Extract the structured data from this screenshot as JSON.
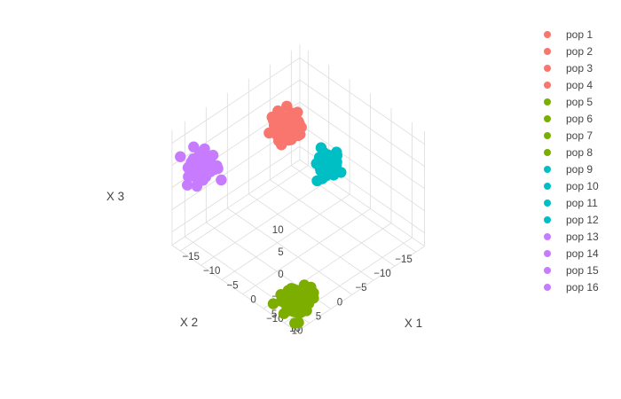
{
  "chart_data": {
    "type": "scatter",
    "projection": "3d",
    "grid": true,
    "legend_position": "right",
    "axes": {
      "x": {
        "label": "X 1",
        "range": [
          -17,
          13
        ],
        "ticks": [
          -15,
          -10,
          -5,
          0,
          5,
          10
        ],
        "tick_labels": [
          "−15",
          "−10",
          "−5",
          "0",
          "5",
          "10"
        ]
      },
      "y": {
        "label": "X 2",
        "range": [
          -17,
          13
        ],
        "ticks": [
          -15,
          -10,
          -5,
          0,
          5,
          10
        ],
        "tick_labels": [
          "−15",
          "−10",
          "−5",
          "0",
          "5",
          "10"
        ]
      },
      "z": {
        "label": "X 3",
        "range": [
          -13,
          13
        ],
        "ticks": [
          -10,
          -5,
          0,
          5,
          10
        ],
        "tick_labels": [
          "−10",
          "−5",
          "0",
          "5",
          "10"
        ]
      }
    },
    "series": [
      {
        "name": "pop 1",
        "color": "#F8766D",
        "center": [
          -11,
          -8,
          4
        ],
        "spread": 1.3
      },
      {
        "name": "pop 2",
        "color": "#F8766D",
        "center": [
          -11,
          -8,
          4
        ],
        "spread": 1.3
      },
      {
        "name": "pop 3",
        "color": "#F8766D",
        "center": [
          -11,
          -8,
          4
        ],
        "spread": 1.3
      },
      {
        "name": "pop 4",
        "color": "#F8766D",
        "center": [
          -11,
          -8,
          4
        ],
        "spread": 1.3
      },
      {
        "name": "pop 5",
        "color": "#7CAE00",
        "center": [
          10,
          10,
          -10
        ],
        "spread": 1.3
      },
      {
        "name": "pop 6",
        "color": "#7CAE00",
        "center": [
          10,
          10,
          -10
        ],
        "spread": 1.3
      },
      {
        "name": "pop 7",
        "color": "#7CAE00",
        "center": [
          10,
          10,
          -10
        ],
        "spread": 1.3
      },
      {
        "name": "pop 8",
        "color": "#7CAE00",
        "center": [
          10,
          10,
          -10
        ],
        "spread": 1.3
      },
      {
        "name": "pop 9",
        "color": "#00BFC4",
        "center": [
          0,
          -7,
          3
        ],
        "spread": 0.9
      },
      {
        "name": "pop 10",
        "color": "#00BFC4",
        "center": [
          0,
          -7,
          3
        ],
        "spread": 0.9
      },
      {
        "name": "pop 11",
        "color": "#00BFC4",
        "center": [
          0,
          -7,
          3
        ],
        "spread": 0.9
      },
      {
        "name": "pop 12",
        "color": "#00BFC4",
        "center": [
          0,
          -7,
          3
        ],
        "spread": 0.9
      },
      {
        "name": "pop 13",
        "color": "#C77CFF",
        "center": [
          -13,
          10,
          5.5
        ],
        "spread": 1.3
      },
      {
        "name": "pop 14",
        "color": "#C77CFF",
        "center": [
          -13,
          10,
          5.5
        ],
        "spread": 1.3
      },
      {
        "name": "pop 15",
        "color": "#C77CFF",
        "center": [
          -13,
          10,
          5.5
        ],
        "spread": 1.3
      },
      {
        "name": "pop 16",
        "color": "#C77CFF",
        "center": [
          -13,
          10,
          5.5
        ],
        "spread": 1.3
      }
    ]
  }
}
